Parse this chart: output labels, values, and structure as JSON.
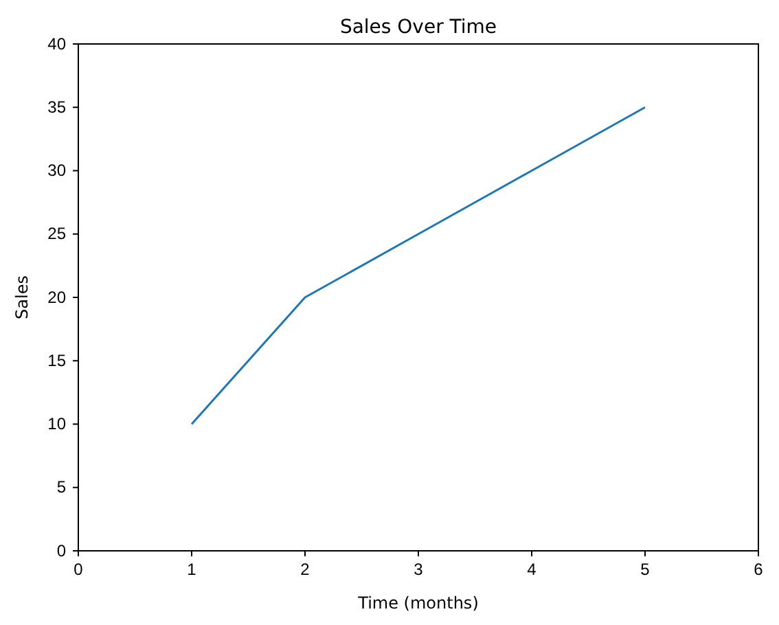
{
  "chart_data": {
    "type": "line",
    "title": "Sales Over Time",
    "xlabel": "Time (months)",
    "ylabel": "Sales",
    "x": [
      1,
      2,
      3,
      4,
      5
    ],
    "series": [
      {
        "color": "#1f77b4",
        "values": [
          10,
          20,
          25,
          30,
          35
        ]
      }
    ],
    "xlim": [
      0,
      6
    ],
    "xticks": [
      0,
      1,
      2,
      3,
      4,
      5,
      6
    ],
    "ylim": [
      0,
      40
    ],
    "yticks": [
      0,
      5,
      10,
      15,
      20,
      25,
      30,
      35,
      40
    ],
    "grid": false,
    "marker": "none",
    "line_style": "solid"
  }
}
